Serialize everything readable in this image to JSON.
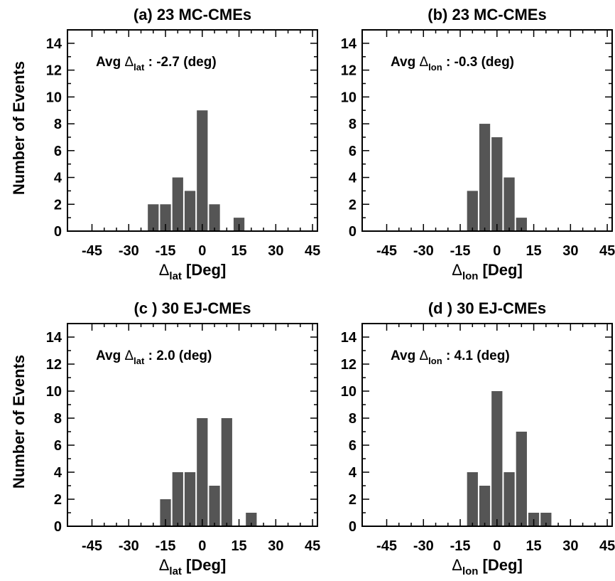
{
  "figure": {
    "ylabel_top": "Number of Events",
    "ylabel_bottom": "Number of Events"
  },
  "chart_data": [
    {
      "type": "bar",
      "title": "(a)   23 MC-CMEs",
      "annotation": {
        "prefix": "Avg ",
        "symbol": "Δ",
        "sub": "lat",
        "suffix": " : -2.7 (deg)"
      },
      "xlabel": {
        "symbol": "Δ",
        "sub": "lat",
        "suffix": " [Deg]"
      },
      "ylabel": "Number of Events",
      "xlim": [
        -55,
        47
      ],
      "ylim": [
        0,
        15
      ],
      "xticks": [
        -45,
        -30,
        -15,
        0,
        15,
        30,
        45
      ],
      "yticks": [
        0,
        2,
        4,
        6,
        8,
        10,
        12,
        14
      ],
      "bin_width": 5,
      "bins": [
        {
          "x": -20,
          "count": 2
        },
        {
          "x": -15,
          "count": 2
        },
        {
          "x": -10,
          "count": 4
        },
        {
          "x": -5,
          "count": 3
        },
        {
          "x": 0,
          "count": 9
        },
        {
          "x": 5,
          "count": 2
        },
        {
          "x": 15,
          "count": 1
        }
      ],
      "bar_color": "#555555"
    },
    {
      "type": "bar",
      "title": "(b)   23 MC-CMEs",
      "annotation": {
        "prefix": "Avg ",
        "symbol": "Δ",
        "sub": "lon",
        "suffix": " : -0.3 (deg)"
      },
      "xlabel": {
        "symbol": "Δ",
        "sub": "lon",
        "suffix": " [Deg]"
      },
      "ylabel": "",
      "xlim": [
        -55,
        47
      ],
      "ylim": [
        0,
        15
      ],
      "xticks": [
        -45,
        -30,
        -15,
        0,
        15,
        30,
        45
      ],
      "yticks": [
        0,
        2,
        4,
        6,
        8,
        10,
        12,
        14
      ],
      "bin_width": 5,
      "bins": [
        {
          "x": -10,
          "count": 3
        },
        {
          "x": -5,
          "count": 8
        },
        {
          "x": 0,
          "count": 7
        },
        {
          "x": 5,
          "count": 4
        },
        {
          "x": 10,
          "count": 1
        }
      ],
      "bar_color": "#555555"
    },
    {
      "type": "bar",
      "title": "(c )  30 EJ-CMEs",
      "annotation": {
        "prefix": "Avg ",
        "symbol": "Δ",
        "sub": "lat",
        "suffix": " :  2.0 (deg)"
      },
      "xlabel": {
        "symbol": "Δ",
        "sub": "lat",
        "suffix": " [Deg]"
      },
      "ylabel": "Number of Events",
      "xlim": [
        -55,
        47
      ],
      "ylim": [
        0,
        15
      ],
      "xticks": [
        -45,
        -30,
        -15,
        0,
        15,
        30,
        45
      ],
      "yticks": [
        0,
        2,
        4,
        6,
        8,
        10,
        12,
        14
      ],
      "bin_width": 5,
      "bins": [
        {
          "x": -15,
          "count": 2
        },
        {
          "x": -10,
          "count": 4
        },
        {
          "x": -5,
          "count": 4
        },
        {
          "x": 0,
          "count": 8
        },
        {
          "x": 5,
          "count": 3
        },
        {
          "x": 10,
          "count": 8
        },
        {
          "x": 20,
          "count": 1
        }
      ],
      "bar_color": "#555555"
    },
    {
      "type": "bar",
      "title": "(d )  30 EJ-CMEs",
      "annotation": {
        "prefix": "Avg ",
        "symbol": "Δ",
        "sub": "lon",
        "suffix": " :  4.1 (deg)"
      },
      "xlabel": {
        "symbol": "Δ",
        "sub": "lon",
        "suffix": " [Deg]"
      },
      "ylabel": "",
      "xlim": [
        -55,
        47
      ],
      "ylim": [
        0,
        15
      ],
      "xticks": [
        -45,
        -30,
        -15,
        0,
        15,
        30,
        45
      ],
      "yticks": [
        0,
        2,
        4,
        6,
        8,
        10,
        12,
        14
      ],
      "bin_width": 5,
      "bins": [
        {
          "x": -10,
          "count": 4
        },
        {
          "x": -5,
          "count": 3
        },
        {
          "x": 0,
          "count": 10
        },
        {
          "x": 5,
          "count": 4
        },
        {
          "x": 10,
          "count": 7
        },
        {
          "x": 15,
          "count": 1
        },
        {
          "x": 20,
          "count": 1
        }
      ],
      "bar_color": "#555555"
    }
  ]
}
